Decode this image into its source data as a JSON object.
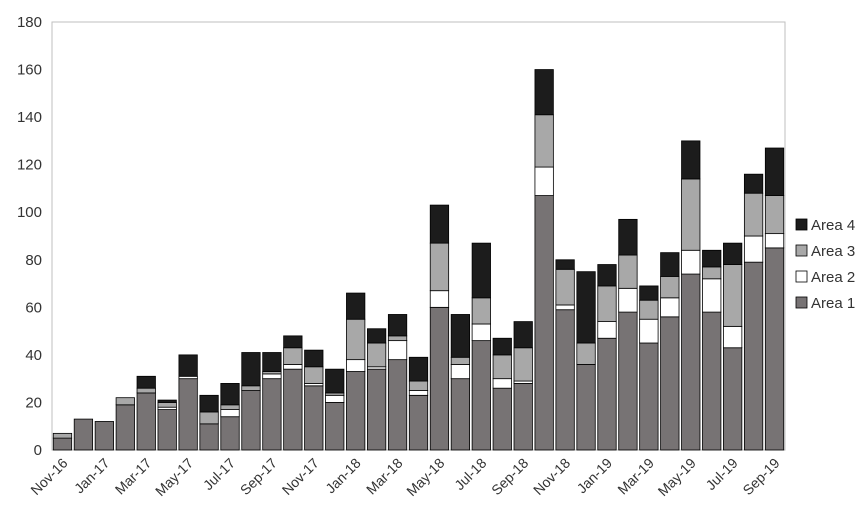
{
  "chart_data": {
    "type": "bar",
    "stacked": true,
    "title": "",
    "xlabel": "",
    "ylabel": "",
    "ylim": [
      0,
      180
    ],
    "yticks": [
      0,
      20,
      40,
      60,
      80,
      100,
      120,
      140,
      160,
      180
    ],
    "grid": false,
    "legend_position": "right",
    "categories": [
      "Nov-16",
      "Dec-16",
      "Jan-17",
      "Feb-17",
      "Mar-17",
      "Apr-17",
      "May-17",
      "Jun-17",
      "Jul-17",
      "Aug-17",
      "Sep-17",
      "Oct-17",
      "Nov-17",
      "Dec-17",
      "Jan-18",
      "Feb-18",
      "Mar-18",
      "Apr-18",
      "May-18",
      "Jun-18",
      "Jul-18",
      "Aug-18",
      "Sep-18",
      "Oct-18",
      "Nov-18",
      "Dec-18",
      "Jan-19",
      "Feb-19",
      "Mar-19",
      "Apr-19",
      "May-19",
      "Jun-19",
      "Jul-19",
      "Aug-19",
      "Sep-19"
    ],
    "tick_labels": [
      "Nov-16",
      "Jan-17",
      "Mar-17",
      "May-17",
      "Jul-17",
      "Sep-17",
      "Nov-17",
      "Jan-18",
      "Mar-18",
      "May-18",
      "Jul-18",
      "Sep-18",
      "Nov-18",
      "Jan-19",
      "Mar-19",
      "May-19",
      "Jul-19",
      "Sep-19"
    ],
    "series": [
      {
        "name": "Area 1",
        "color": "#777374",
        "values": [
          5,
          13,
          12,
          19,
          24,
          17,
          30,
          11,
          14,
          25,
          30,
          34,
          27,
          20,
          33,
          34,
          38,
          23,
          60,
          30,
          46,
          26,
          28,
          107,
          59,
          36,
          47,
          58,
          45,
          56,
          74,
          58,
          43,
          79,
          85
        ]
      },
      {
        "name": "Area 2",
        "color": "#ffffff",
        "values": [
          0,
          0,
          0,
          0,
          0,
          1,
          1,
          0,
          3,
          0,
          2,
          2,
          1,
          3,
          5,
          1,
          8,
          2,
          7,
          6,
          7,
          4,
          1,
          12,
          2,
          0,
          7,
          10,
          10,
          8,
          10,
          14,
          9,
          11,
          6
        ]
      },
      {
        "name": "Area 3",
        "color": "#a8a8a8",
        "values": [
          2,
          0,
          0,
          3,
          2,
          2,
          0,
          5,
          2,
          2,
          1,
          7,
          7,
          1,
          17,
          10,
          2,
          4,
          20,
          3,
          11,
          10,
          14,
          22,
          15,
          9,
          15,
          14,
          8,
          9,
          30,
          5,
          26,
          18,
          16
        ]
      },
      {
        "name": "Area 4",
        "color": "#1c1c1c",
        "values": [
          0,
          0,
          0,
          0,
          5,
          1,
          9,
          7,
          9,
          14,
          8,
          5,
          7,
          10,
          11,
          6,
          9,
          10,
          16,
          18,
          23,
          7,
          11,
          19,
          4,
          30,
          9,
          15,
          6,
          10,
          16,
          7,
          9,
          8,
          20
        ]
      }
    ]
  }
}
